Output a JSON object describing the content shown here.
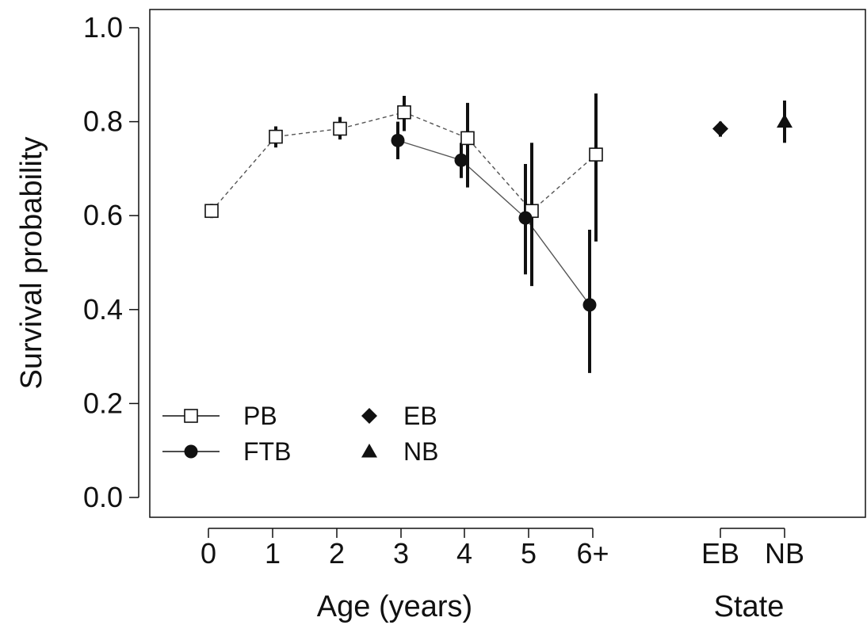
{
  "chart_data": {
    "type": "scatter",
    "ylabel": "Survival probability",
    "xlabel_age": "Age (years)",
    "xlabel_state": "State",
    "ylim": [
      0.0,
      1.0
    ],
    "yticks": [
      "0.0",
      "0.2",
      "0.4",
      "0.6",
      "0.8",
      "1.0"
    ],
    "age_categories": [
      "0",
      "1",
      "2",
      "3",
      "4",
      "5",
      "6+"
    ],
    "state_categories": [
      "EB",
      "NB"
    ],
    "grid": false,
    "legend_placement": "bottom-left",
    "series": [
      {
        "name": "PB",
        "marker": "open-square",
        "line": "dashed",
        "points": [
          {
            "x": "0",
            "y": 0.61,
            "lower": 0.595,
            "upper": 0.625
          },
          {
            "x": "1",
            "y": 0.768,
            "lower": 0.745,
            "upper": 0.79
          },
          {
            "x": "2",
            "y": 0.785,
            "lower": 0.762,
            "upper": 0.81
          },
          {
            "x": "3",
            "y": 0.82,
            "lower": 0.78,
            "upper": 0.855
          },
          {
            "x": "4",
            "y": 0.765,
            "lower": 0.66,
            "upper": 0.84
          },
          {
            "x": "5",
            "y": 0.61,
            "lower": 0.45,
            "upper": 0.755
          },
          {
            "x": "6+",
            "y": 0.73,
            "lower": 0.545,
            "upper": 0.86
          }
        ]
      },
      {
        "name": "FTB",
        "marker": "filled-circle",
        "line": "solid",
        "points": [
          {
            "x": "3",
            "y": 0.76,
            "lower": 0.72,
            "upper": 0.8
          },
          {
            "x": "4",
            "y": 0.718,
            "lower": 0.68,
            "upper": 0.755
          },
          {
            "x": "5",
            "y": 0.595,
            "lower": 0.475,
            "upper": 0.71
          },
          {
            "x": "6+",
            "y": 0.41,
            "lower": 0.265,
            "upper": 0.57
          }
        ]
      },
      {
        "name": "EB",
        "marker": "filled-diamond",
        "points": [
          {
            "x": "EB",
            "y": 0.785,
            "lower": 0.768,
            "upper": 0.8
          }
        ]
      },
      {
        "name": "NB",
        "marker": "filled-triangle",
        "points": [
          {
            "x": "NB",
            "y": 0.8,
            "lower": 0.755,
            "upper": 0.845
          }
        ]
      }
    ],
    "legend": {
      "entries": [
        "PB",
        "FTB",
        "EB",
        "NB"
      ]
    }
  }
}
